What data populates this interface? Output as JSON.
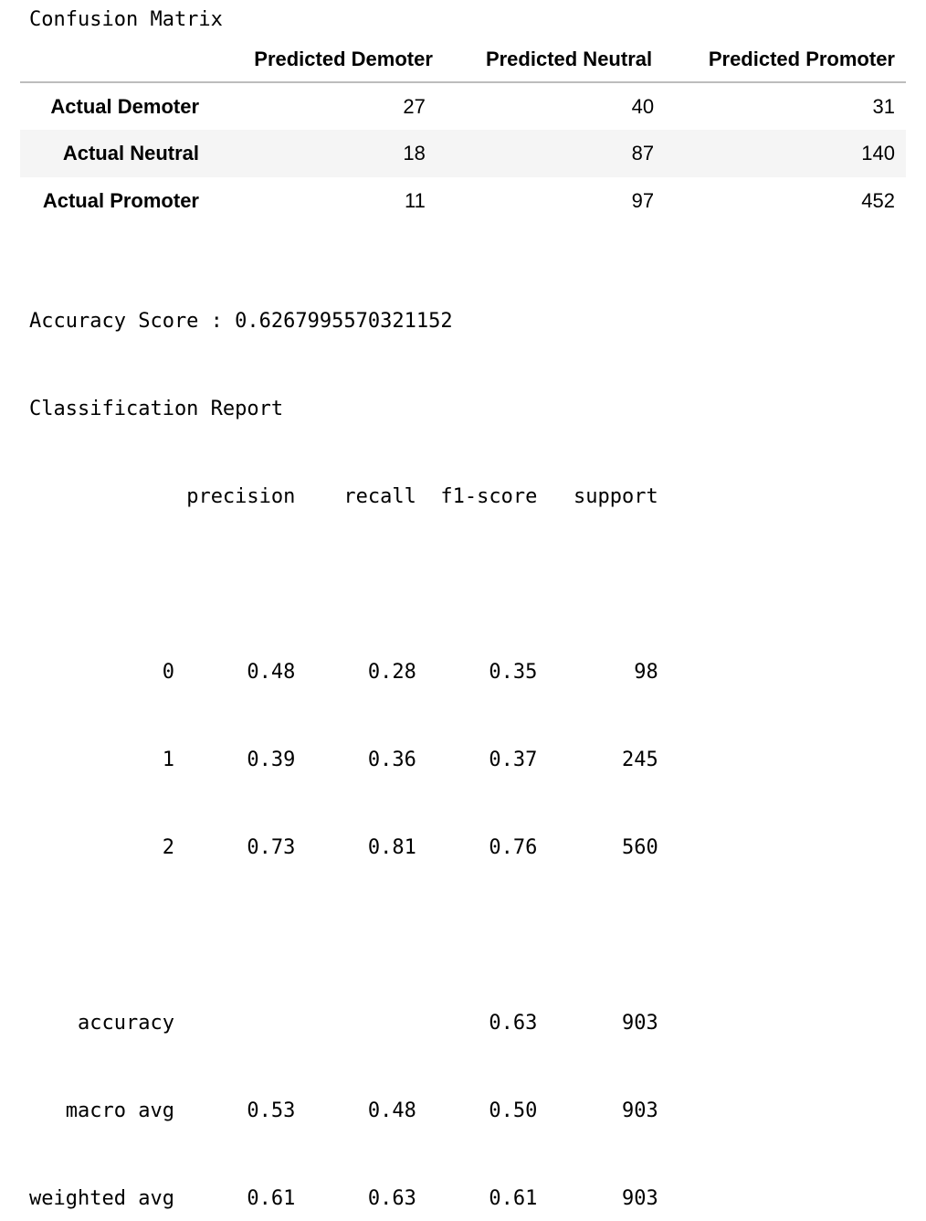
{
  "confusion_matrix": {
    "title": "Confusion Matrix",
    "columns": [
      "Predicted Demoter",
      "Predicted Neutral",
      "Predicted Promoter"
    ],
    "rows": [
      {
        "label": "Actual Demoter",
        "values": [
          "27",
          "40",
          "31"
        ]
      },
      {
        "label": "Actual Neutral",
        "values": [
          "18",
          "87",
          "140"
        ]
      },
      {
        "label": "Actual Promoter",
        "values": [
          "11",
          "97",
          "452"
        ]
      }
    ]
  },
  "accuracy": {
    "label": "Accuracy Score :",
    "value": "0.6267995570321152"
  },
  "report": {
    "title": "Classification Report",
    "headers": [
      "precision",
      "recall",
      "f1-score",
      "support"
    ],
    "classes": [
      {
        "label": "0",
        "precision": "0.48",
        "recall": "0.28",
        "f1": "0.35",
        "support": "98"
      },
      {
        "label": "1",
        "precision": "0.39",
        "recall": "0.36",
        "f1": "0.37",
        "support": "245"
      },
      {
        "label": "2",
        "precision": "0.73",
        "recall": "0.81",
        "f1": "0.76",
        "support": "560"
      }
    ],
    "accuracy_row": {
      "label": "accuracy",
      "f1": "0.63",
      "support": "903"
    },
    "averages": [
      {
        "label": "macro avg",
        "precision": "0.53",
        "recall": "0.48",
        "f1": "0.50",
        "support": "903"
      },
      {
        "label": "weighted avg",
        "precision": "0.61",
        "recall": "0.63",
        "f1": "0.61",
        "support": "903"
      }
    ]
  }
}
